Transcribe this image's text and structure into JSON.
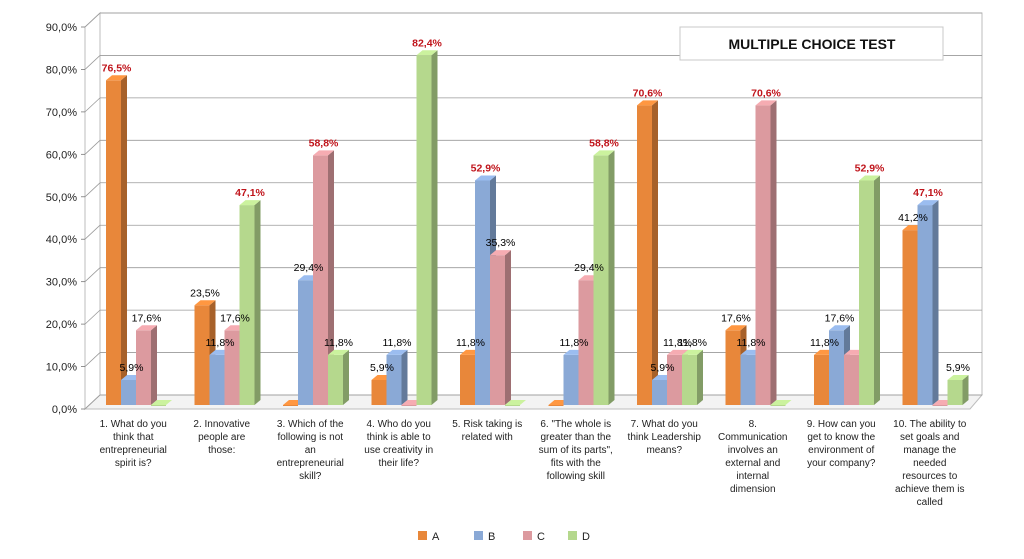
{
  "chart_data": {
    "type": "bar",
    "title": "MULTIPLE CHOICE TEST",
    "ylim": [
      0,
      90
    ],
    "yticks": [
      "0,0%",
      "10,0%",
      "20,0%",
      "30,0%",
      "40,0%",
      "50,0%",
      "60,0%",
      "70,0%",
      "80,0%",
      "90,0%"
    ],
    "grid": true,
    "legend_position": "bottom",
    "categories": [
      "1. What do you think that entrepreneurial spirit is?",
      "2. Innovative people are those:",
      "3. Which of the following is not an entrepreneurial skill?",
      "4. Who do you think is able to use creativity in their life?",
      "5. Risk taking is related with",
      "6. \"The whole is greater than the sum of its parts\", fits with the following skill",
      "7. What do you think Leadership means?",
      "8. Communication involves an external and internal dimension",
      "9. How can you get to know the environment of your company?",
      "10. The ability to set goals and manage the needed resources to achieve them is called"
    ],
    "category_lines": [
      [
        "1. What do you",
        "think that",
        "entrepreneurial",
        "spirit is?"
      ],
      [
        "2. Innovative",
        "people are",
        "those:"
      ],
      [
        "3. Which of the",
        "following is not",
        "an",
        "entrepreneurial",
        "skill?"
      ],
      [
        "4. Who do you",
        "think is able to",
        "use creativity in",
        "their life?"
      ],
      [
        "5. Risk taking is",
        "related with"
      ],
      [
        "6. \"The whole is",
        "greater than the",
        "sum of its parts\",",
        "fits with the",
        "following skill"
      ],
      [
        "7. What do you",
        "think Leadership",
        "means?"
      ],
      [
        "8.",
        "Communication",
        "involves an",
        "external and",
        "internal",
        "dimension"
      ],
      [
        "9. How can you",
        "get to know the",
        "environment of",
        "your company?"
      ],
      [
        "10. The ability to",
        "set goals and",
        "manage the",
        "needed",
        "resources to",
        "achieve them is",
        "called"
      ]
    ],
    "series": [
      {
        "name": "A",
        "color": "#e8873a",
        "values": [
          76.5,
          23.5,
          0,
          5.9,
          11.8,
          0,
          70.6,
          17.6,
          11.8,
          41.2
        ],
        "labels": [
          "76,5%",
          "23,5%",
          "",
          "5,9%",
          "11,8%",
          "",
          "70,6%",
          "17,6%",
          "11,8%",
          "41,2%"
        ]
      },
      {
        "name": "B",
        "color": "#8aa9d6",
        "values": [
          5.9,
          11.8,
          29.4,
          11.8,
          52.9,
          11.8,
          5.9,
          11.8,
          17.6,
          47.1
        ],
        "labels": [
          "5,9%",
          "11,8%",
          "29,4%",
          "11,8%",
          "52,9%",
          "11,8%",
          "5,9%",
          "11,8%",
          "17,6%",
          "47,1%"
        ]
      },
      {
        "name": "C",
        "color": "#dc9a9f",
        "values": [
          17.6,
          17.6,
          58.8,
          0,
          35.3,
          29.4,
          11.8,
          70.6,
          11.8,
          0
        ],
        "labels": [
          "17,6%",
          "17,6%",
          "58,8%",
          "",
          "35,3%",
          "29,4%",
          "11,8%",
          "70,6%",
          "",
          ""
        ]
      },
      {
        "name": "D",
        "color": "#b5d88d",
        "values": [
          0,
          47.1,
          11.8,
          82.4,
          0,
          58.8,
          11.8,
          0,
          52.9,
          5.9
        ],
        "labels": [
          "",
          "47,1%",
          "11,8%",
          "82,4%",
          "",
          "58,8%",
          "11,8%",
          "",
          "52,9%",
          "5,9%"
        ]
      }
    ]
  }
}
